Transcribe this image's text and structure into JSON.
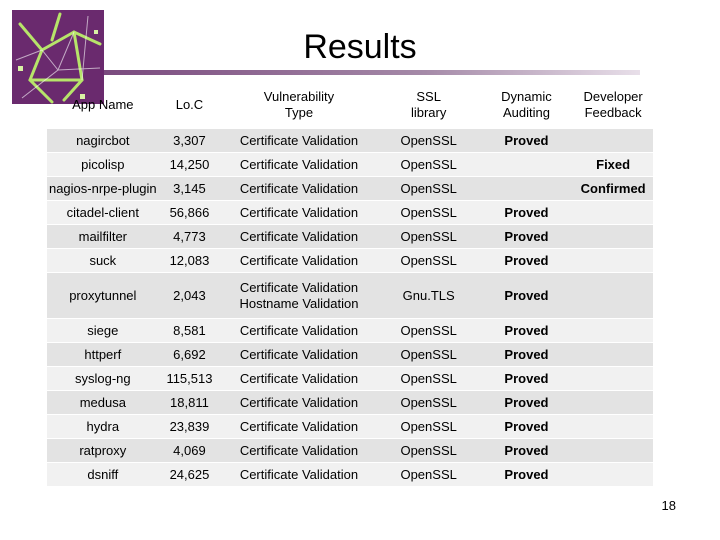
{
  "slide": {
    "title": "Results",
    "page_number": "18"
  },
  "table": {
    "headers": [
      {
        "lines": [
          "App Name"
        ]
      },
      {
        "lines": [
          "Lo.C"
        ]
      },
      {
        "lines": [
          "Vulnerability",
          "Type"
        ]
      },
      {
        "lines": [
          "SSL",
          "library"
        ]
      },
      {
        "lines": [
          "Dynamic",
          "Auditing"
        ]
      },
      {
        "lines": [
          "Developer",
          "Feedback"
        ]
      }
    ],
    "rows": [
      {
        "app": "nagircbot",
        "loc": "3,307",
        "vuln": [
          "Certificate Validation"
        ],
        "ssl": "OpenSSL",
        "dynamic": "Proved",
        "feedback": ""
      },
      {
        "app": "picolisp",
        "loc": "14,250",
        "vuln": [
          "Certificate Validation"
        ],
        "ssl": "OpenSSL",
        "dynamic": "",
        "feedback": "Fixed"
      },
      {
        "app": "nagios-nrpe-plugin",
        "loc": "3,145",
        "vuln": [
          "Certificate Validation"
        ],
        "ssl": "OpenSSL",
        "dynamic": "",
        "feedback": "Confirmed"
      },
      {
        "app": "citadel-client",
        "loc": "56,866",
        "vuln": [
          "Certificate Validation"
        ],
        "ssl": "OpenSSL",
        "dynamic": "Proved",
        "feedback": ""
      },
      {
        "app": "mailfilter",
        "loc": "4,773",
        "vuln": [
          "Certificate Validation"
        ],
        "ssl": "OpenSSL",
        "dynamic": "Proved",
        "feedback": ""
      },
      {
        "app": "suck",
        "loc": "12,083",
        "vuln": [
          "Certificate Validation"
        ],
        "ssl": "OpenSSL",
        "dynamic": "Proved",
        "feedback": ""
      },
      {
        "app": "proxytunnel",
        "loc": "2,043",
        "vuln": [
          "Certificate Validation",
          "Hostname Validation"
        ],
        "ssl": "Gnu.TLS",
        "dynamic": "Proved",
        "feedback": ""
      },
      {
        "app": "siege",
        "loc": "8,581",
        "vuln": [
          "Certificate Validation"
        ],
        "ssl": "OpenSSL",
        "dynamic": "Proved",
        "feedback": ""
      },
      {
        "app": "httperf",
        "loc": "6,692",
        "vuln": [
          "Certificate Validation"
        ],
        "ssl": "OpenSSL",
        "dynamic": "Proved",
        "feedback": ""
      },
      {
        "app": "syslog-ng",
        "loc": "115,513",
        "vuln": [
          "Certificate Validation"
        ],
        "ssl": "OpenSSL",
        "dynamic": "Proved",
        "feedback": ""
      },
      {
        "app": "medusa",
        "loc": "18,811",
        "vuln": [
          "Certificate Validation"
        ],
        "ssl": "OpenSSL",
        "dynamic": "Proved",
        "feedback": ""
      },
      {
        "app": "hydra",
        "loc": "23,839",
        "vuln": [
          "Certificate Validation"
        ],
        "ssl": "OpenSSL",
        "dynamic": "Proved",
        "feedback": ""
      },
      {
        "app": "ratproxy",
        "loc": "4,069",
        "vuln": [
          "Certificate Validation"
        ],
        "ssl": "OpenSSL",
        "dynamic": "Proved",
        "feedback": ""
      },
      {
        "app": "dsniff",
        "loc": "24,625",
        "vuln": [
          "Certificate Validation"
        ],
        "ssl": "OpenSSL",
        "dynamic": "Proved",
        "feedback": ""
      }
    ]
  },
  "colors": {
    "logo_background": "#6a2a6e",
    "logo_lines": "#b7e46a",
    "row_odd": "#e3e3e3",
    "row_even": "#f1f1f1"
  },
  "icons": {
    "logo": "abstract-line-logo"
  }
}
